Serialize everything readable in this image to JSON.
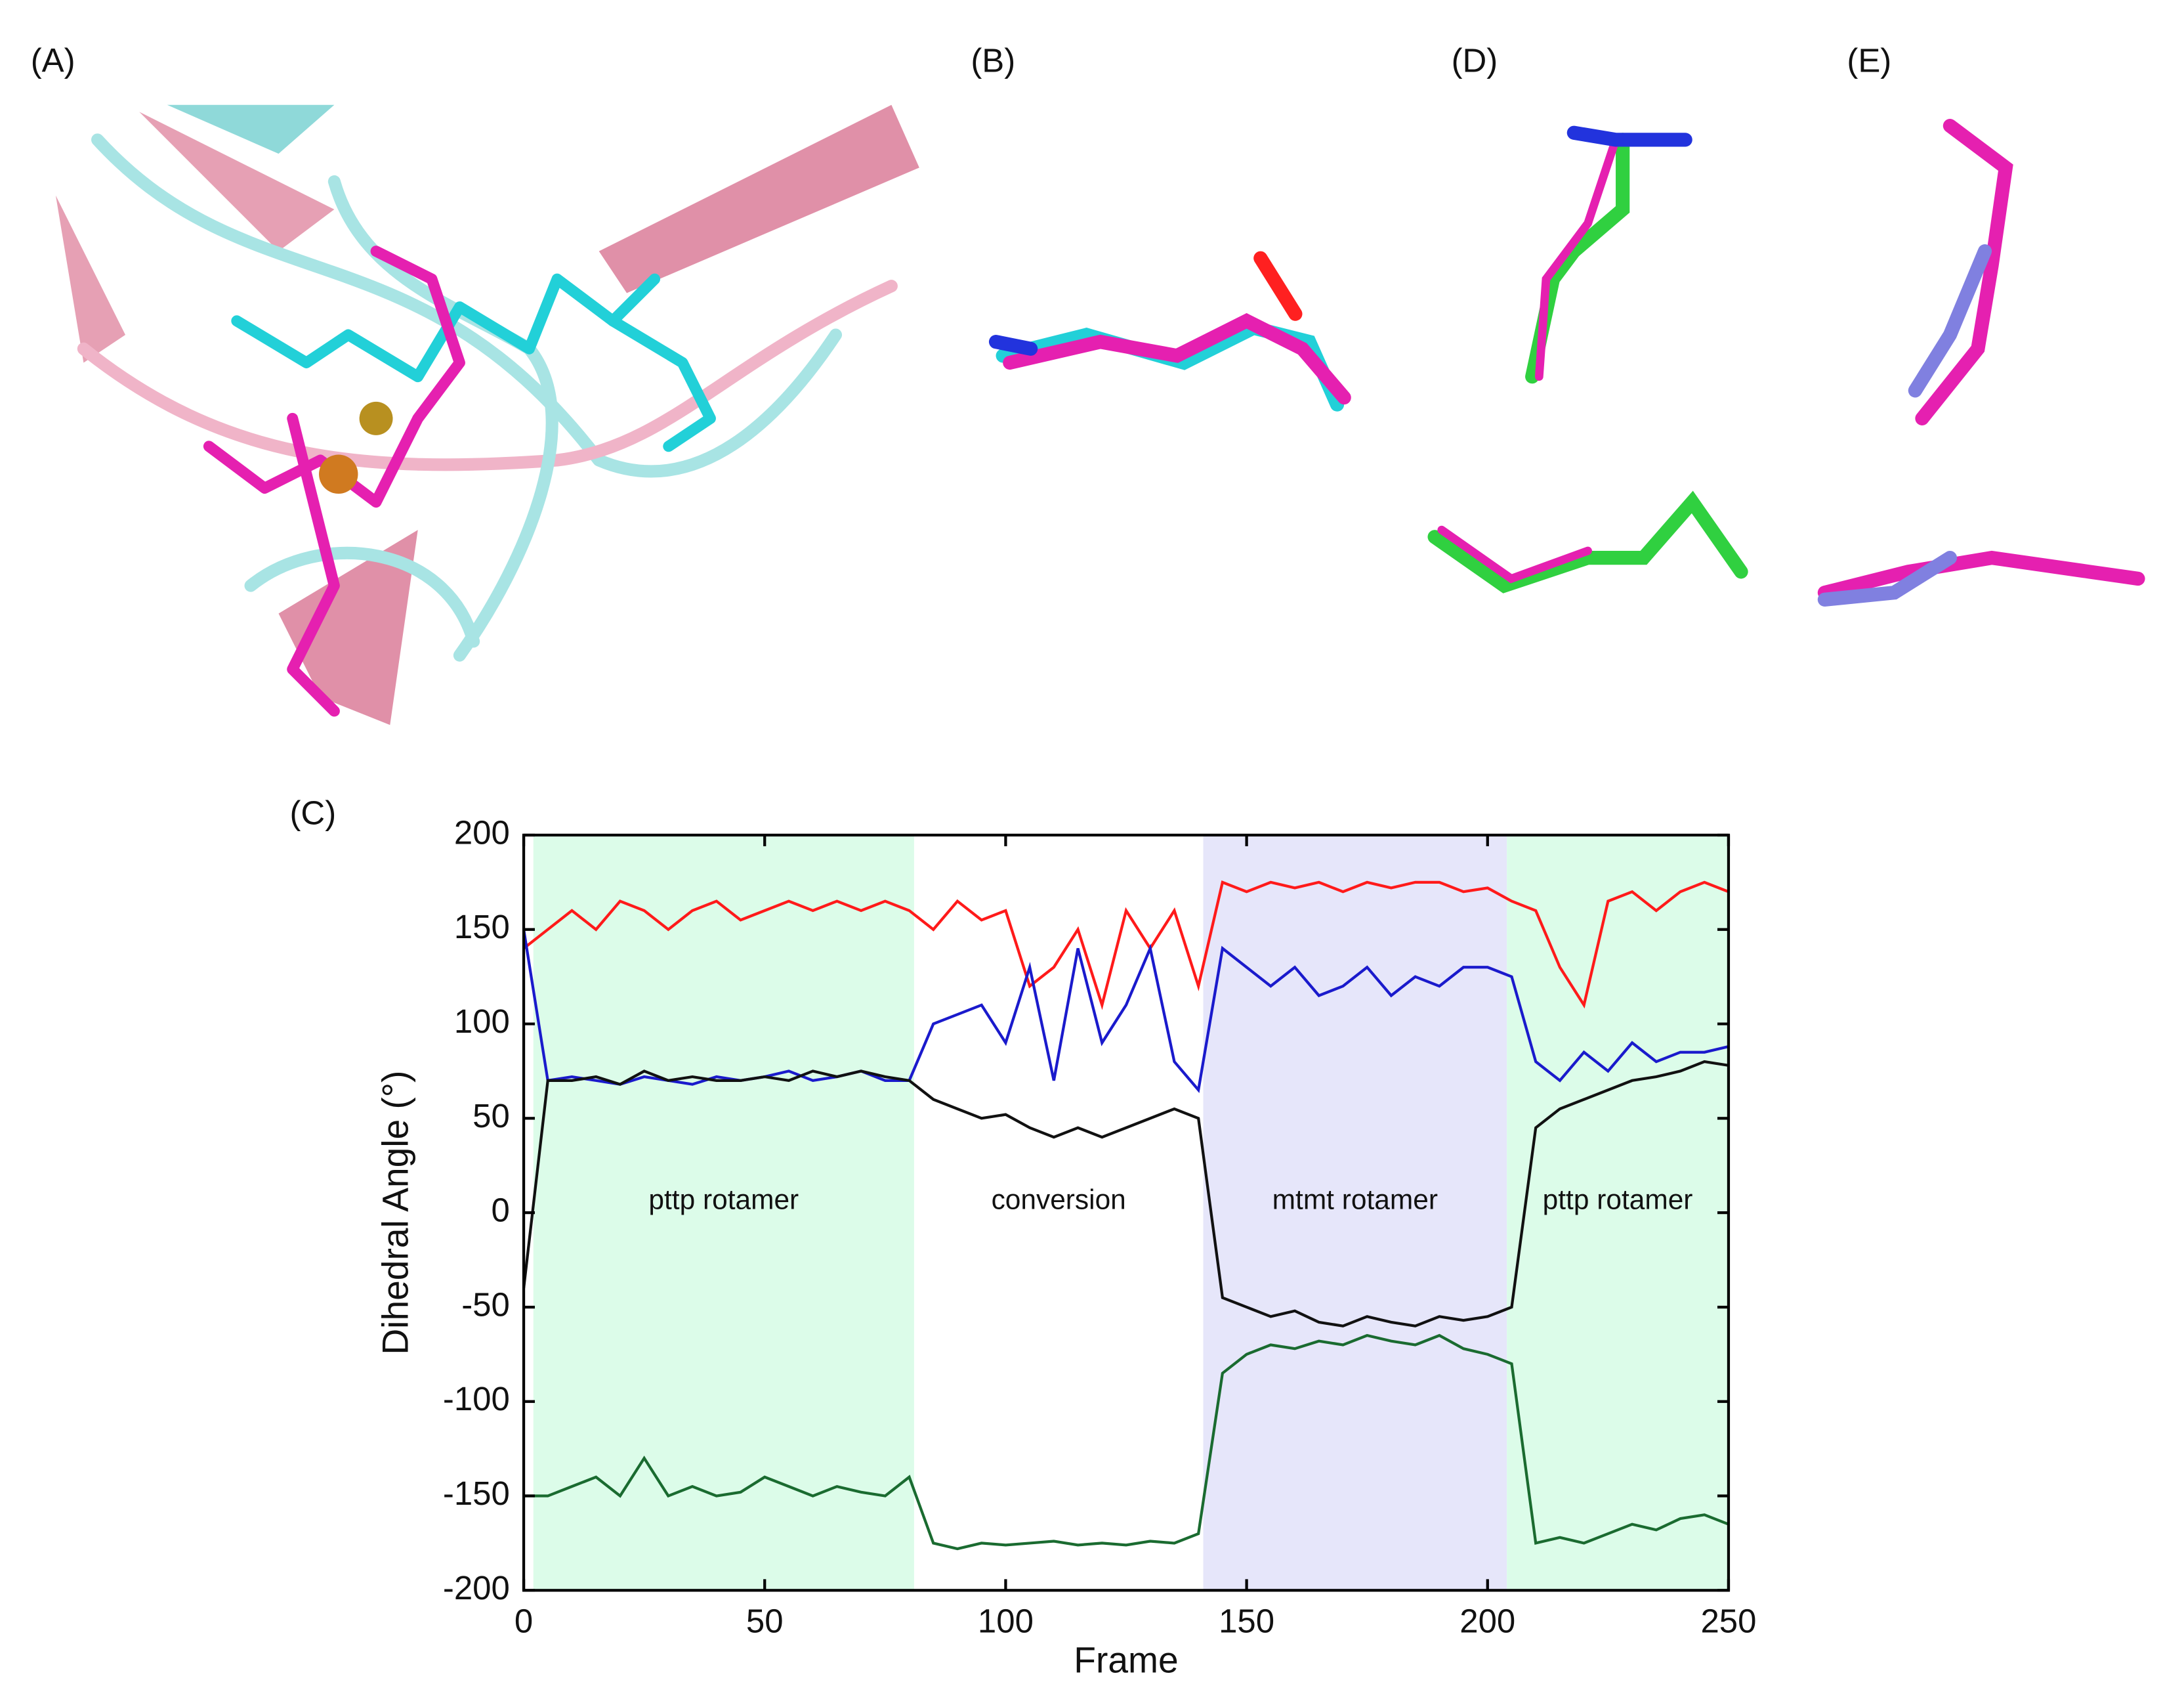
{
  "panel_labels": {
    "a": "(A)",
    "b": "(B)",
    "d": "(D)",
    "e": "(E)"
  },
  "chart_data": {
    "type": "line",
    "panel_label": "(C)",
    "xlabel": "Frame",
    "ylabel": "Dihedral Angle (°)",
    "xlim": [
      0,
      250
    ],
    "ylim": [
      -200,
      200
    ],
    "xticks": [
      0,
      50,
      100,
      150,
      200,
      250
    ],
    "yticks": [
      -200,
      -150,
      -100,
      -50,
      0,
      50,
      100,
      150,
      200
    ],
    "regions": [
      {
        "start": 2,
        "end": 81,
        "label": "pttp rotamer",
        "color": "#dcfce9"
      },
      {
        "start": 81,
        "end": 141,
        "label": "conversion"
      },
      {
        "start": 141,
        "end": 204,
        "label": "mtmt rotamer",
        "color": "#e6e6fa"
      },
      {
        "start": 204,
        "end": 250,
        "label": "pttp rotamer",
        "color": "#dcfce9"
      }
    ],
    "x": [
      0,
      5,
      10,
      15,
      20,
      25,
      30,
      35,
      40,
      45,
      50,
      55,
      60,
      65,
      70,
      75,
      80,
      85,
      90,
      95,
      100,
      105,
      110,
      115,
      120,
      125,
      130,
      135,
      140,
      145,
      150,
      155,
      160,
      165,
      170,
      175,
      180,
      185,
      190,
      195,
      200,
      205,
      210,
      215,
      220,
      225,
      230,
      235,
      240,
      245,
      250
    ],
    "series": [
      {
        "color": "#ff1a1a",
        "values": [
          140,
          150,
          160,
          150,
          165,
          160,
          150,
          160,
          165,
          155,
          160,
          165,
          160,
          165,
          160,
          165,
          160,
          150,
          165,
          155,
          160,
          120,
          130,
          150,
          110,
          160,
          140,
          160,
          120,
          175,
          170,
          175,
          172,
          175,
          170,
          175,
          172,
          175,
          175,
          170,
          172,
          165,
          160,
          130,
          110,
          165,
          170,
          160,
          170,
          175,
          170
        ]
      },
      {
        "color": "#1a1acc",
        "values": [
          150,
          70,
          72,
          70,
          68,
          72,
          70,
          68,
          72,
          70,
          72,
          75,
          70,
          72,
          75,
          70,
          70,
          100,
          105,
          110,
          90,
          130,
          70,
          140,
          90,
          110,
          140,
          80,
          65,
          140,
          130,
          120,
          130,
          115,
          120,
          130,
          115,
          125,
          120,
          130,
          130,
          125,
          80,
          70,
          85,
          75,
          90,
          80,
          85,
          85,
          88
        ]
      },
      {
        "color": "#111111",
        "values": [
          -40,
          70,
          70,
          72,
          68,
          75,
          70,
          72,
          70,
          70,
          72,
          70,
          75,
          72,
          75,
          72,
          70,
          60,
          55,
          50,
          52,
          45,
          40,
          45,
          40,
          45,
          50,
          55,
          50,
          -45,
          -50,
          -55,
          -52,
          -58,
          -60,
          -55,
          -58,
          -60,
          -55,
          -57,
          -55,
          -50,
          45,
          55,
          60,
          65,
          70,
          72,
          75,
          80,
          78
        ]
      },
      {
        "color": "#1a6b30",
        "values": [
          -150,
          -150,
          -145,
          -140,
          -150,
          -130,
          -150,
          -145,
          -150,
          -148,
          -140,
          -145,
          -150,
          -145,
          -148,
          -150,
          -140,
          -175,
          -178,
          -175,
          -176,
          -175,
          -174,
          -176,
          -175,
          -176,
          -174,
          -175,
          -170,
          -85,
          -75,
          -70,
          -72,
          -68,
          -70,
          -65,
          -68,
          -70,
          -65,
          -72,
          -75,
          -80,
          -175,
          -172,
          -175,
          -170,
          -165,
          -168,
          -162,
          -160,
          -165
        ]
      }
    ]
  }
}
